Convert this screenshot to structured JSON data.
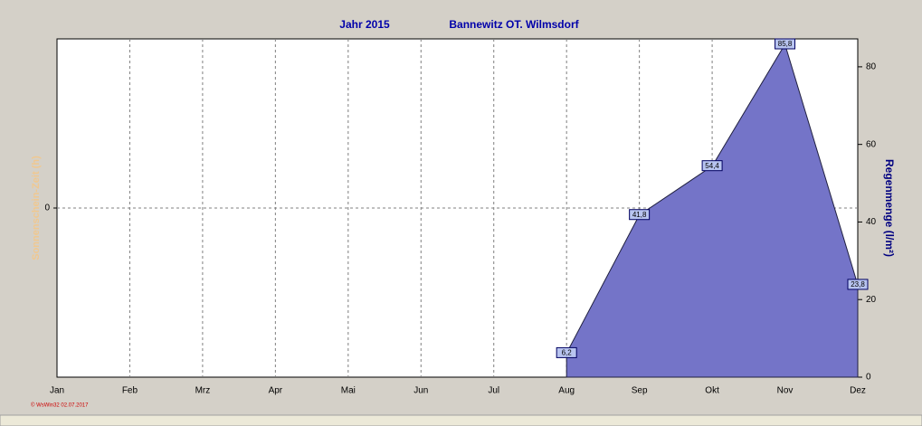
{
  "chart_data": {
    "type": "area",
    "title": "Jahr  2015",
    "subtitle": "Bannewitz OT. Wilmsdorf",
    "ylabel": "Sonnenschein-Zeit  (h)",
    "footer": "© WsWin32  02.07.2017",
    "categories": [
      "Jan",
      "Feb",
      "Mrz",
      "Apr",
      "Mai",
      "Jun",
      "Jul",
      "Aug",
      "Sep",
      "Okt",
      "Nov",
      "Dez"
    ],
    "series": [
      {
        "name": "Regenmenge  (l/m²)",
        "color": "#7474c8",
        "axis": "y2",
        "values": [
          null,
          null,
          null,
          null,
          null,
          null,
          null,
          6.2,
          41.8,
          54.4,
          85.8,
          23.8
        ],
        "value_labels": [
          null,
          null,
          null,
          null,
          null,
          null,
          null,
          "6,2",
          "41,8",
          "54,4",
          "85,8",
          "23,8"
        ]
      }
    ],
    "ylim": [
      -1,
      1
    ],
    "yticks": [
      0
    ],
    "y2lim": [
      0,
      87.2
    ],
    "y2ticks": [
      0,
      20,
      40,
      60,
      80
    ],
    "grid": true
  }
}
